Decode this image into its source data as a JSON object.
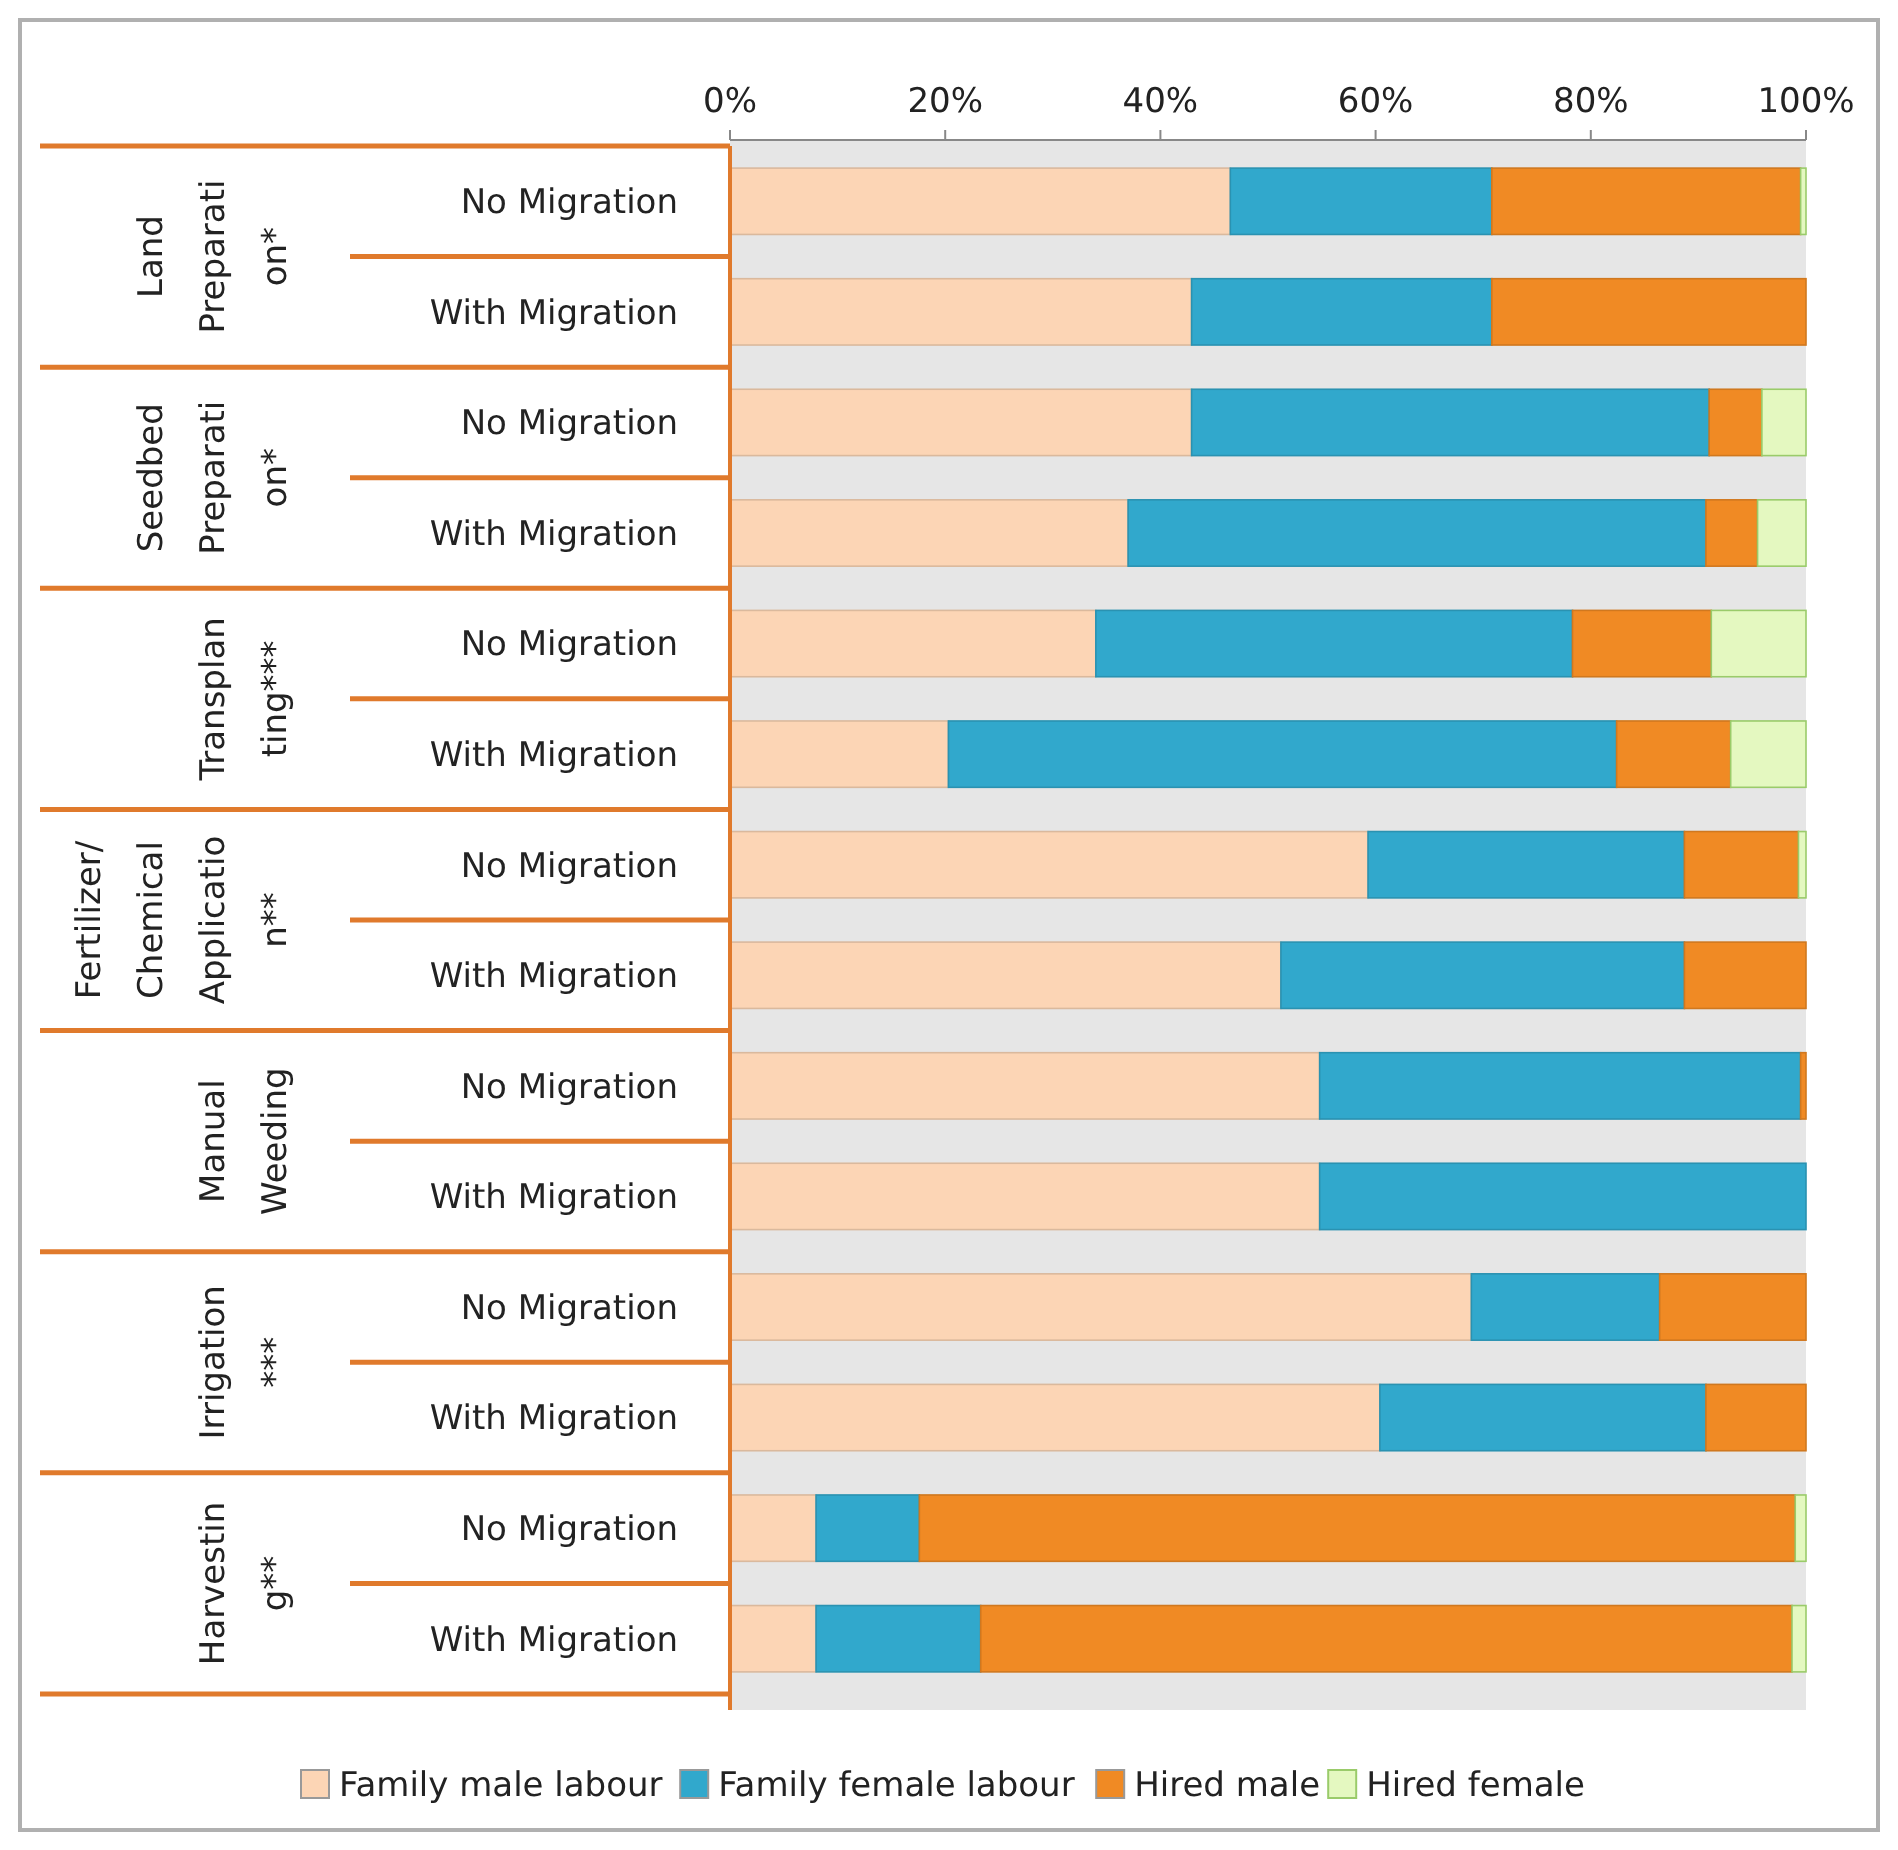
{
  "chart_data": {
    "type": "bar",
    "orientation": "horizontal",
    "stacked": true,
    "categories": [
      "No Migration",
      "With Migration",
      "No Migration",
      "With Migration",
      "No Migration",
      "With Migration",
      "No Migration",
      "With Migration",
      "No Migration",
      "With Migration",
      "No Migration",
      "With Migration",
      "No Migration",
      "With Migration"
    ],
    "series": [
      {
        "name": "Family male labour",
        "color": "#fcd5b5",
        "values": [
          46.5,
          42.9,
          42.9,
          37.0,
          34.0,
          20.3,
          59.3,
          51.2,
          54.8,
          54.8,
          68.9,
          60.4,
          8.0,
          8.0
        ]
      },
      {
        "name": "Family female labour",
        "color": "#31a8cc",
        "values": [
          24.3,
          27.9,
          48.1,
          53.7,
          44.3,
          62.1,
          29.4,
          37.5,
          44.7,
          45.2,
          17.5,
          30.3,
          9.6,
          15.3
        ]
      },
      {
        "name": "Hired male",
        "color": "#f08a24",
        "values": [
          28.7,
          29.2,
          4.9,
          4.8,
          12.9,
          10.6,
          10.6,
          11.3,
          0.5,
          0,
          13.6,
          9.3,
          81.4,
          75.4
        ]
      },
      {
        "name": "Hired female",
        "color": "#e4f8c0",
        "values": [
          0.5,
          0,
          4.1,
          4.5,
          8.8,
          7.0,
          0.7,
          0,
          0,
          0,
          0,
          0,
          1.0,
          1.3
        ]
      }
    ],
    "xlim": [
      0,
      100
    ],
    "xticks": [
      {
        "value": 0,
        "label": "0%"
      },
      {
        "value": 20,
        "label": "20%"
      },
      {
        "value": 40,
        "label": "40%"
      },
      {
        "value": 60,
        "label": "60%"
      },
      {
        "value": 80,
        "label": "80%"
      },
      {
        "value": 100,
        "label": "100%"
      }
    ],
    "annotations": [
      "Land\nPreparati\non*",
      "Seedbed\nPreparati\non*",
      "Transplan\nting***",
      "Fertilizer/\nChemical\nApplicatio\nn**",
      "Manual\nWeeding",
      "Irrigation\n***",
      "Harvestin\ng**"
    ],
    "legend": "bottom",
    "grid": false
  }
}
